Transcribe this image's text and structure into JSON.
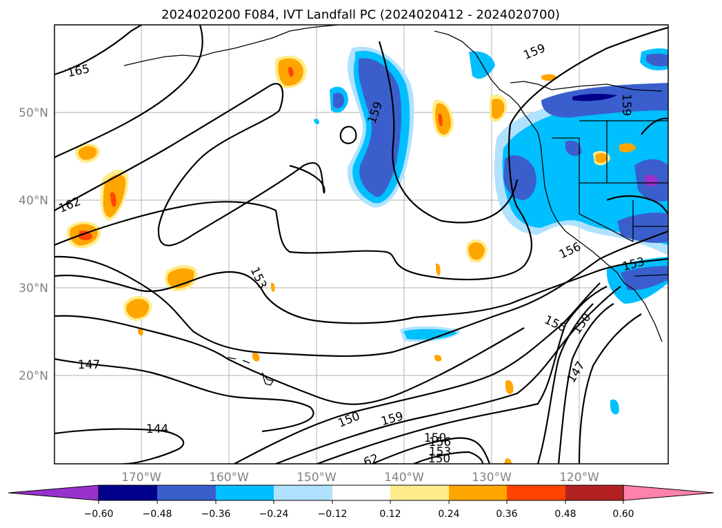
{
  "title": "2024020200 F084, IVT Landfall PC (2024020412 - 2024020700)",
  "lat_labels": [
    "50°N",
    "40°N",
    "30°N",
    "20°N"
  ],
  "lon_labels": [
    "170°W",
    "160°W",
    "150°W",
    "140°W",
    "130°W",
    "120°W"
  ],
  "contour_labels": [
    "165",
    "162",
    "159",
    "159",
    "159",
    "156",
    "156",
    "153",
    "153",
    "150",
    "150",
    "150",
    "147",
    "147",
    "144",
    "159",
    "156",
    "153",
    "150",
    "62"
  ],
  "colorbar": {
    "tick_labels": [
      "−0.60",
      "−0.48",
      "−0.36",
      "−0.24",
      "−0.12",
      "0.12",
      "0.24",
      "0.36",
      "0.48",
      "0.60"
    ],
    "colors": [
      "#9932cc",
      "#00008b",
      "#3a5fcd",
      "#00bfff",
      "#b0e2ff",
      "#ffffff",
      "#ffec8b",
      "#ffa500",
      "#ff4500",
      "#b22222",
      "#ff82ab"
    ]
  }
}
